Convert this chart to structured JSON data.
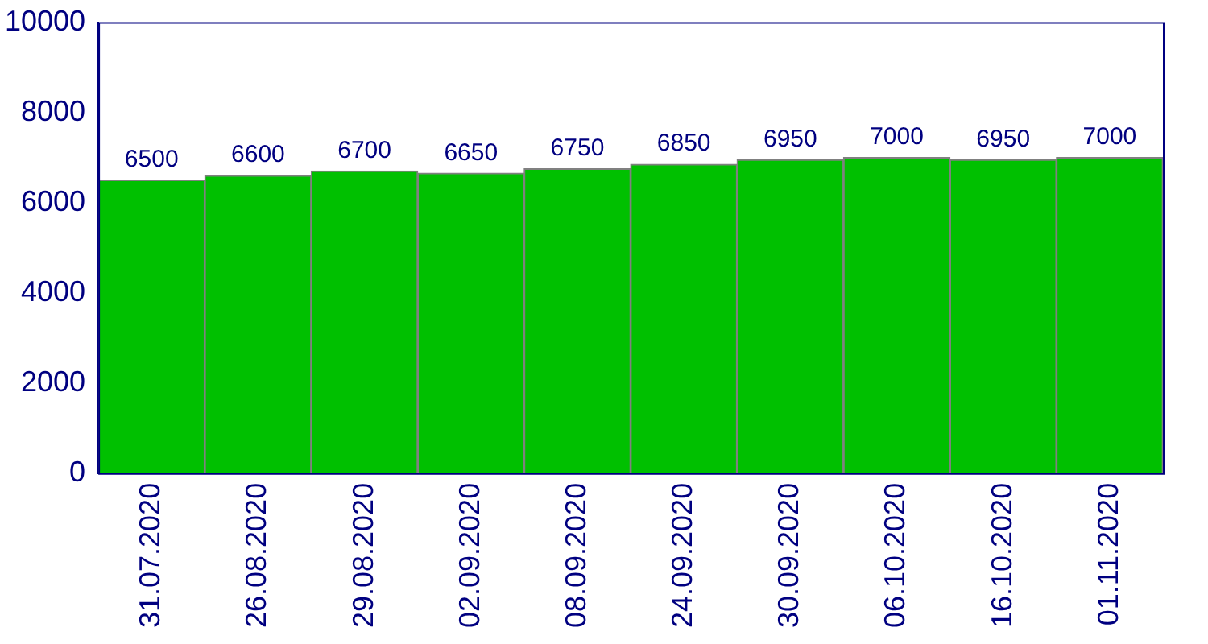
{
  "chart_data": {
    "type": "bar",
    "categories": [
      "31.07.2020",
      "26.08.2020",
      "29.08.2020",
      "02.09.2020",
      "08.09.2020",
      "24.09.2020",
      "30.09.2020",
      "06.10.2020",
      "16.10.2020",
      "01.11.2020"
    ],
    "values": [
      6500,
      6600,
      6700,
      6650,
      6750,
      6850,
      6950,
      7000,
      6950,
      7000
    ],
    "color": "#00c000",
    "ylim": [
      0,
      10000
    ],
    "yticks": [
      0,
      2000,
      4000,
      6000,
      8000,
      10000
    ],
    "grid": false,
    "legend": false,
    "data_labels": true
  }
}
